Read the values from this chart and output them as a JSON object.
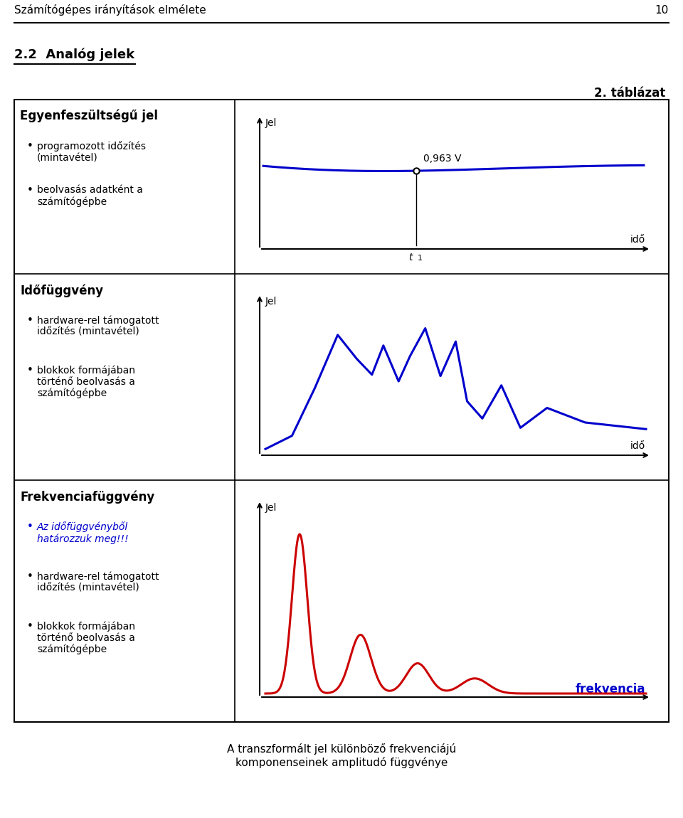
{
  "page_title": "Számítógépes irányítások elmélete",
  "page_number": "10",
  "section_title": "2.2  Analóg jelek",
  "table_title": "2. táblázat",
  "row1_left_title": "Egyenfeszültségű jel",
  "row2_left_title": "Időfüggvény",
  "row3_left_title": "Frekvenciafüggvény",
  "bottom_text": "A transzformált jel különböző frekvenciájú\nkomponenseinek amplitudó függvénye",
  "blue_color": "#0000CC",
  "red_color": "#CC0000",
  "black_color": "#000000",
  "row1_bullets": [
    "programozott időzítés\n(mintavétel)",
    "beolvasás adatként a\nszámítógépbe"
  ],
  "row2_bullets": [
    "hardware-rel támogatott\nidőzítés (mintavétel)",
    "blokkok formájában\ntörténő beolvasás a\nszámítógépbe"
  ],
  "row3_bullet_blue": "Az időfüggvényből\nhatározzuk meg!!!",
  "row3_bullets_black": [
    "hardware-rel támogatott\nidőzítés (mintavétel)",
    "blokkok formájában\ntörténő beolvasás a\nszámítógépbe"
  ],
  "jel_label": "Jel",
  "ido_label": "idő",
  "frekvencia_label": "frekvencia",
  "t1_label": "t",
  "voltage_label": "0,963 V"
}
